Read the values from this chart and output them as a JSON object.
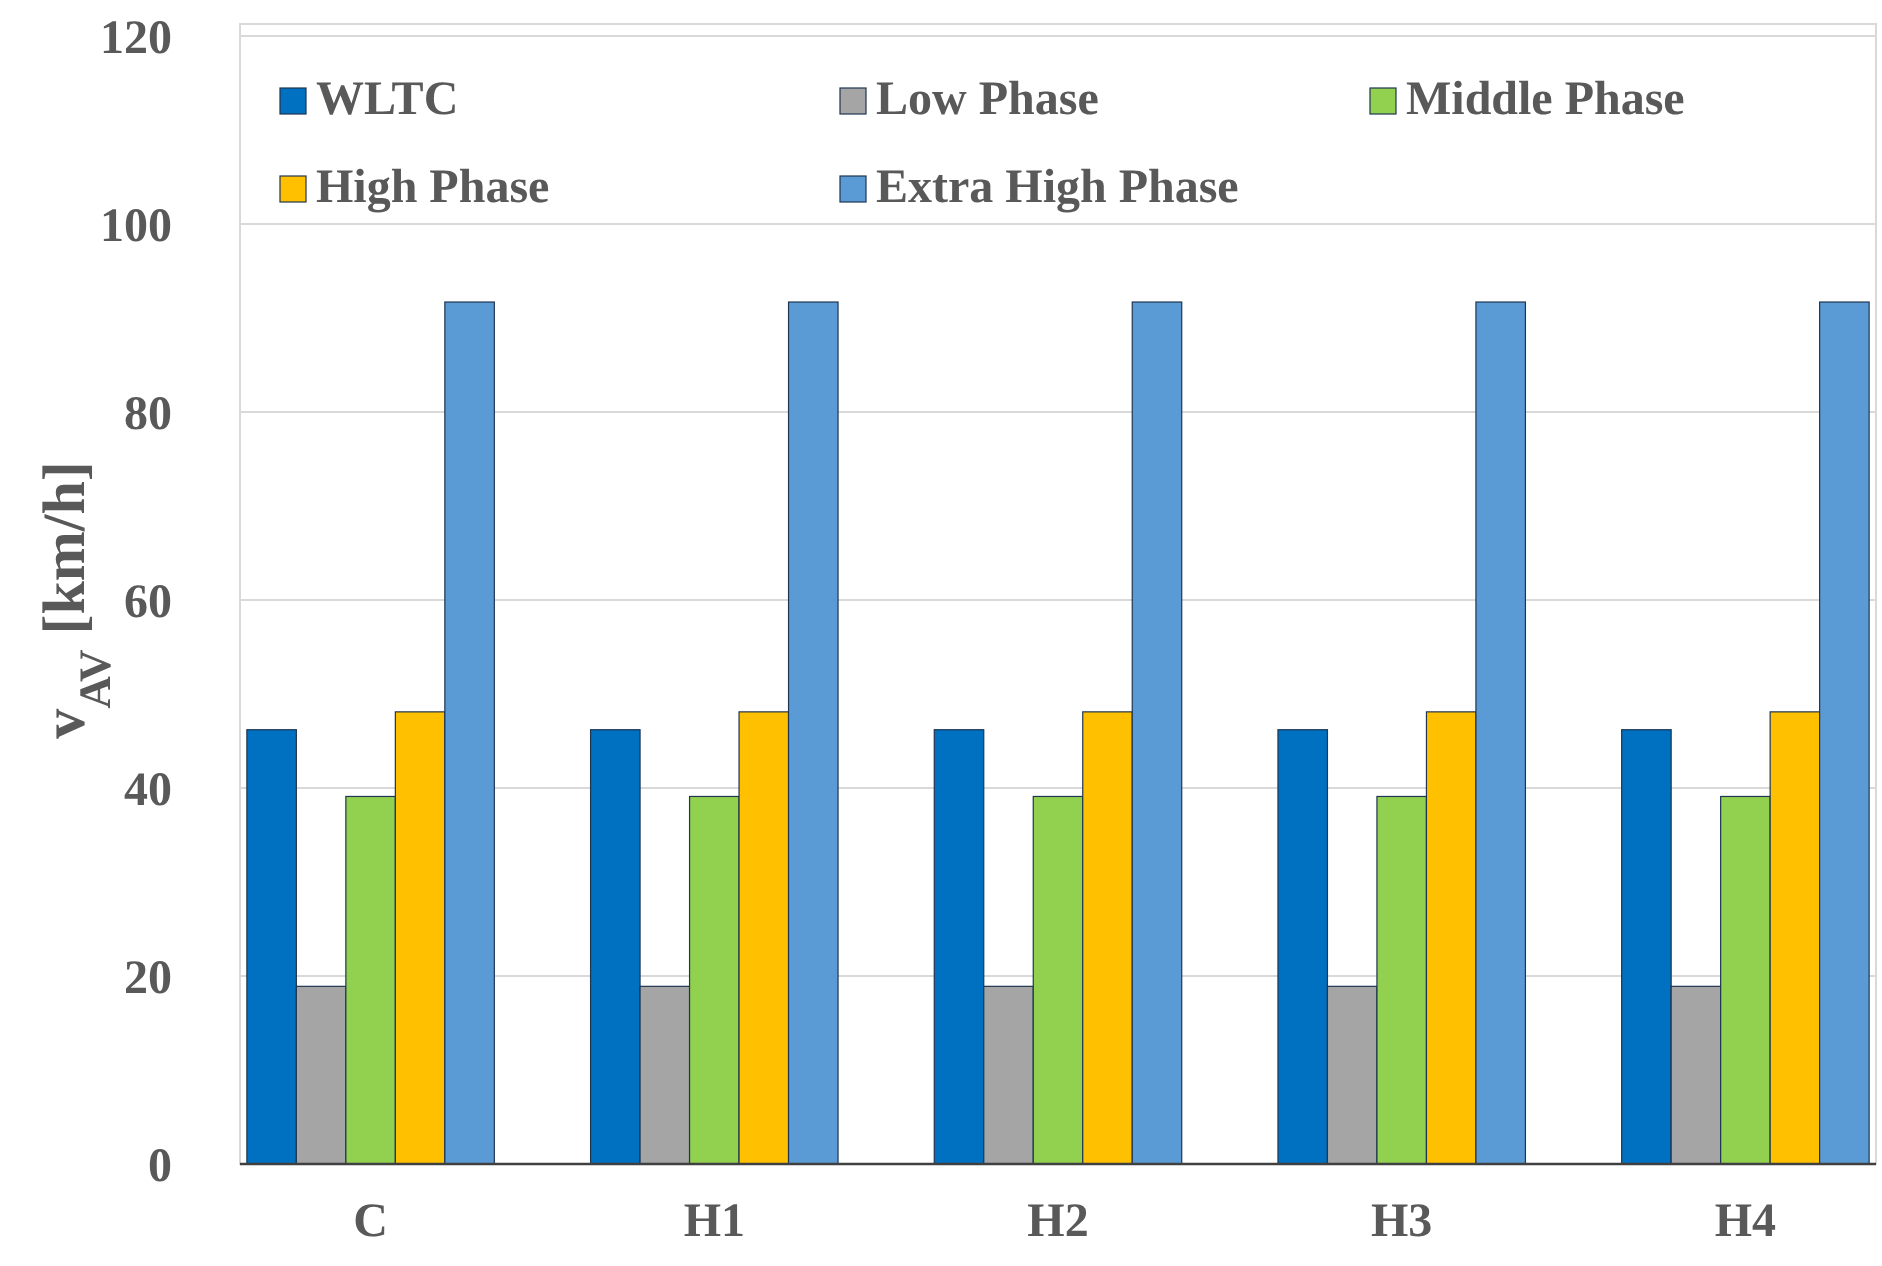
{
  "chart_data": {
    "type": "bar",
    "ylabel": "v$_{AV}$ [km/h]",
    "categories": [
      "C",
      "H1",
      "H2",
      "H3",
      "H4"
    ],
    "series": [
      {
        "name": "WLTC",
        "color": "#0070c0",
        "values": [
          46.2,
          46.2,
          46.2,
          46.2,
          46.2
        ]
      },
      {
        "name": "Low Phase",
        "color": "#a5a5a5",
        "values": [
          18.9,
          18.9,
          18.9,
          18.9,
          18.9
        ]
      },
      {
        "name": "Middle Phase",
        "color": "#92d050",
        "values": [
          39.1,
          39.1,
          39.1,
          39.1,
          39.1
        ]
      },
      {
        "name": "High Phase",
        "color": "#ffc000",
        "values": [
          48.1,
          48.1,
          48.1,
          48.1,
          48.1
        ]
      },
      {
        "name": "Extra High Phase",
        "color": "#5b9bd5",
        "values": [
          91.7,
          91.7,
          91.7,
          91.7,
          91.7
        ]
      }
    ],
    "ylim": [
      0,
      120
    ],
    "yticks": [
      0,
      20,
      40,
      60,
      80,
      100,
      120
    ],
    "grid": "y",
    "legend": "top left"
  }
}
